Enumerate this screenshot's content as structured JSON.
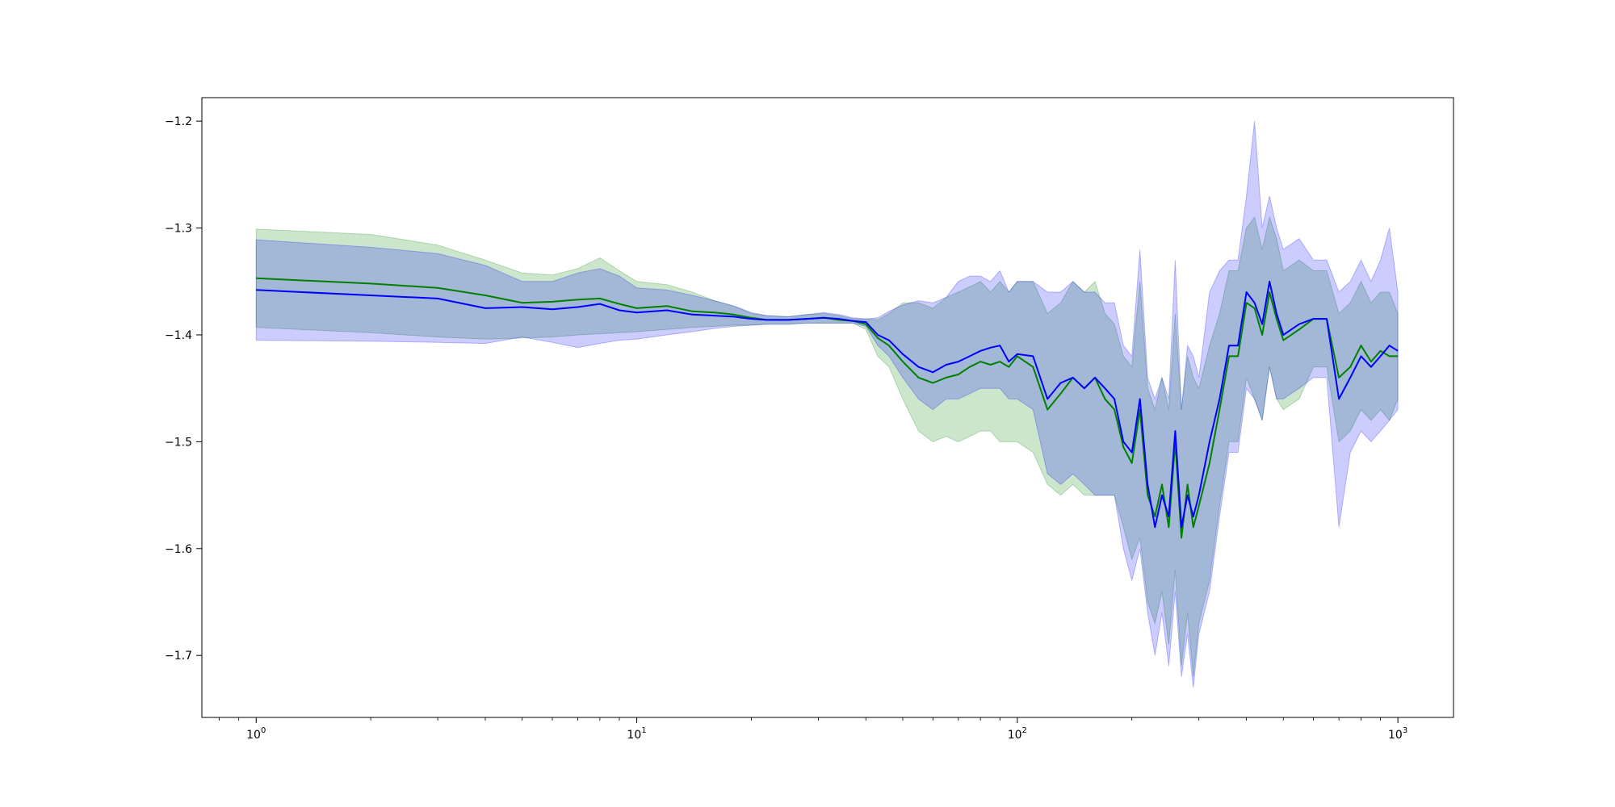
{
  "chart_data": {
    "type": "line",
    "title": "",
    "xlabel": "",
    "ylabel": "",
    "xscale": "log",
    "xlim": [
      0.72,
      1400
    ],
    "ylim": [
      -1.758,
      -1.178
    ],
    "grid": false,
    "legend": "none",
    "x_major_ticks": [
      1,
      10,
      100,
      1000
    ],
    "x_major_tick_labels": [
      {
        "base": "10",
        "exp": "0"
      },
      {
        "base": "10",
        "exp": "1"
      },
      {
        "base": "10",
        "exp": "2"
      },
      {
        "base": "10",
        "exp": "3"
      }
    ],
    "y_ticks": [
      -1.2,
      -1.3,
      -1.4,
      -1.5,
      -1.6,
      -1.7
    ],
    "y_tick_labels": [
      "−1.2",
      "−1.3",
      "−1.4",
      "−1.5",
      "−1.6",
      "−1.7"
    ],
    "x": [
      1,
      2,
      3,
      4,
      5,
      6,
      7,
      8,
      9,
      10,
      12,
      14,
      16,
      18,
      20,
      22,
      25,
      28,
      31,
      34,
      37,
      40,
      43,
      46,
      50,
      55,
      60,
      65,
      70,
      75,
      80,
      85,
      90,
      95,
      100,
      110,
      120,
      130,
      140,
      150,
      160,
      170,
      180,
      190,
      200,
      210,
      220,
      230,
      240,
      250,
      260,
      270,
      280,
      290,
      300,
      320,
      340,
      360,
      380,
      400,
      420,
      440,
      460,
      480,
      500,
      550,
      600,
      650,
      700,
      750,
      800,
      850,
      900,
      950,
      1000
    ],
    "series": [
      {
        "color": "#008000",
        "band_alpha": 0.2,
        "values": [
          -1.347,
          -1.352,
          -1.356,
          -1.363,
          -1.37,
          -1.369,
          -1.367,
          -1.366,
          -1.371,
          -1.375,
          -1.373,
          -1.378,
          -1.379,
          -1.381,
          -1.384,
          -1.386,
          -1.386,
          -1.385,
          -1.384,
          -1.386,
          -1.387,
          -1.39,
          -1.403,
          -1.41,
          -1.425,
          -1.44,
          -1.445,
          -1.44,
          -1.437,
          -1.43,
          -1.425,
          -1.428,
          -1.425,
          -1.43,
          -1.42,
          -1.43,
          -1.47,
          -1.455,
          -1.44,
          -1.45,
          -1.44,
          -1.46,
          -1.47,
          -1.505,
          -1.52,
          -1.47,
          -1.55,
          -1.57,
          -1.54,
          -1.58,
          -1.5,
          -1.59,
          -1.54,
          -1.58,
          -1.56,
          -1.52,
          -1.47,
          -1.42,
          -1.42,
          -1.37,
          -1.375,
          -1.4,
          -1.36,
          -1.385,
          -1.405,
          -1.395,
          -1.385,
          -1.385,
          -1.44,
          -1.43,
          -1.41,
          -1.425,
          -1.415,
          -1.42,
          -1.42
        ],
        "lower": [
          -1.393,
          -1.398,
          -1.402,
          -1.404,
          -1.403,
          -1.402,
          -1.4,
          -1.399,
          -1.398,
          -1.397,
          -1.395,
          -1.393,
          -1.392,
          -1.391,
          -1.391,
          -1.39,
          -1.39,
          -1.389,
          -1.389,
          -1.389,
          -1.389,
          -1.395,
          -1.42,
          -1.43,
          -1.46,
          -1.49,
          -1.5,
          -1.495,
          -1.5,
          -1.495,
          -1.49,
          -1.49,
          -1.5,
          -1.5,
          -1.5,
          -1.51,
          -1.54,
          -1.55,
          -1.54,
          -1.55,
          -1.55,
          -1.55,
          -1.55,
          -1.58,
          -1.61,
          -1.59,
          -1.65,
          -1.67,
          -1.64,
          -1.69,
          -1.62,
          -1.71,
          -1.66,
          -1.72,
          -1.67,
          -1.63,
          -1.56,
          -1.5,
          -1.5,
          -1.44,
          -1.46,
          -1.48,
          -1.43,
          -1.46,
          -1.47,
          -1.46,
          -1.43,
          -1.43,
          -1.5,
          -1.49,
          -1.47,
          -1.48,
          -1.47,
          -1.48,
          -1.46
        ],
        "upper": [
          -1.301,
          -1.306,
          -1.316,
          -1.33,
          -1.342,
          -1.344,
          -1.338,
          -1.328,
          -1.34,
          -1.35,
          -1.353,
          -1.36,
          -1.368,
          -1.373,
          -1.38,
          -1.382,
          -1.383,
          -1.381,
          -1.38,
          -1.382,
          -1.385,
          -1.385,
          -1.386,
          -1.38,
          -1.37,
          -1.37,
          -1.375,
          -1.365,
          -1.36,
          -1.355,
          -1.35,
          -1.36,
          -1.35,
          -1.36,
          -1.35,
          -1.35,
          -1.38,
          -1.37,
          -1.35,
          -1.36,
          -1.35,
          -1.38,
          -1.39,
          -1.42,
          -1.43,
          -1.35,
          -1.45,
          -1.47,
          -1.44,
          -1.47,
          -1.38,
          -1.47,
          -1.42,
          -1.44,
          -1.45,
          -1.41,
          -1.38,
          -1.34,
          -1.34,
          -1.3,
          -1.29,
          -1.32,
          -1.29,
          -1.31,
          -1.34,
          -1.33,
          -1.34,
          -1.34,
          -1.38,
          -1.37,
          -1.35,
          -1.37,
          -1.36,
          -1.36,
          -1.38
        ]
      },
      {
        "color": "#0000ff",
        "band_alpha": 0.2,
        "values": [
          -1.358,
          -1.363,
          -1.366,
          -1.375,
          -1.374,
          -1.376,
          -1.374,
          -1.371,
          -1.377,
          -1.379,
          -1.377,
          -1.381,
          -1.382,
          -1.383,
          -1.385,
          -1.386,
          -1.386,
          -1.385,
          -1.384,
          -1.385,
          -1.387,
          -1.388,
          -1.4,
          -1.405,
          -1.418,
          -1.43,
          -1.435,
          -1.428,
          -1.425,
          -1.42,
          -1.415,
          -1.412,
          -1.41,
          -1.425,
          -1.418,
          -1.42,
          -1.46,
          -1.445,
          -1.44,
          -1.45,
          -1.44,
          -1.45,
          -1.46,
          -1.5,
          -1.51,
          -1.46,
          -1.54,
          -1.58,
          -1.55,
          -1.57,
          -1.49,
          -1.58,
          -1.55,
          -1.57,
          -1.55,
          -1.5,
          -1.46,
          -1.41,
          -1.41,
          -1.36,
          -1.37,
          -1.39,
          -1.35,
          -1.38,
          -1.4,
          -1.39,
          -1.385,
          -1.385,
          -1.46,
          -1.44,
          -1.42,
          -1.43,
          -1.42,
          -1.41,
          -1.415
        ],
        "lower": [
          -1.405,
          -1.406,
          -1.407,
          -1.408,
          -1.402,
          -1.407,
          -1.412,
          -1.408,
          -1.405,
          -1.404,
          -1.4,
          -1.397,
          -1.394,
          -1.392,
          -1.391,
          -1.39,
          -1.39,
          -1.389,
          -1.389,
          -1.389,
          -1.389,
          -1.392,
          -1.41,
          -1.42,
          -1.44,
          -1.46,
          -1.47,
          -1.46,
          -1.46,
          -1.455,
          -1.45,
          -1.45,
          -1.45,
          -1.46,
          -1.46,
          -1.47,
          -1.53,
          -1.54,
          -1.53,
          -1.54,
          -1.55,
          -1.55,
          -1.55,
          -1.6,
          -1.63,
          -1.6,
          -1.66,
          -1.7,
          -1.66,
          -1.71,
          -1.64,
          -1.72,
          -1.68,
          -1.73,
          -1.68,
          -1.64,
          -1.57,
          -1.51,
          -1.51,
          -1.45,
          -1.46,
          -1.48,
          -1.43,
          -1.46,
          -1.46,
          -1.45,
          -1.44,
          -1.44,
          -1.58,
          -1.51,
          -1.49,
          -1.5,
          -1.49,
          -1.48,
          -1.47
        ],
        "upper": [
          -1.311,
          -1.318,
          -1.324,
          -1.335,
          -1.35,
          -1.35,
          -1.342,
          -1.338,
          -1.345,
          -1.356,
          -1.358,
          -1.363,
          -1.368,
          -1.373,
          -1.379,
          -1.382,
          -1.383,
          -1.381,
          -1.379,
          -1.381,
          -1.384,
          -1.385,
          -1.384,
          -1.378,
          -1.372,
          -1.368,
          -1.37,
          -1.365,
          -1.35,
          -1.345,
          -1.345,
          -1.35,
          -1.34,
          -1.36,
          -1.35,
          -1.35,
          -1.36,
          -1.36,
          -1.35,
          -1.36,
          -1.36,
          -1.37,
          -1.37,
          -1.41,
          -1.42,
          -1.32,
          -1.44,
          -1.46,
          -1.44,
          -1.46,
          -1.33,
          -1.47,
          -1.41,
          -1.42,
          -1.44,
          -1.36,
          -1.34,
          -1.33,
          -1.33,
          -1.27,
          -1.2,
          -1.3,
          -1.27,
          -1.3,
          -1.32,
          -1.31,
          -1.33,
          -1.33,
          -1.36,
          -1.35,
          -1.33,
          -1.35,
          -1.33,
          -1.3,
          -1.36
        ]
      }
    ]
  }
}
